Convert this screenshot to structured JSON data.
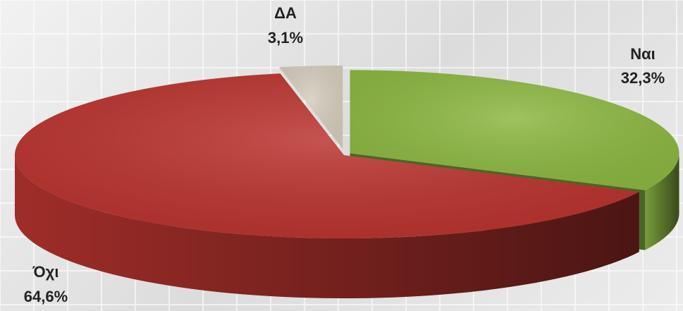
{
  "chart_data": {
    "type": "pie3d",
    "categories": [
      "Ναι",
      "Όχι",
      "ΔΑ"
    ],
    "values": [
      32.3,
      64.6,
      3.1
    ],
    "value_labels": [
      "32,3%",
      "64,6%",
      "3,1%"
    ],
    "colors": [
      "#8db843",
      "#bb3530",
      "#d6cdbd"
    ]
  }
}
